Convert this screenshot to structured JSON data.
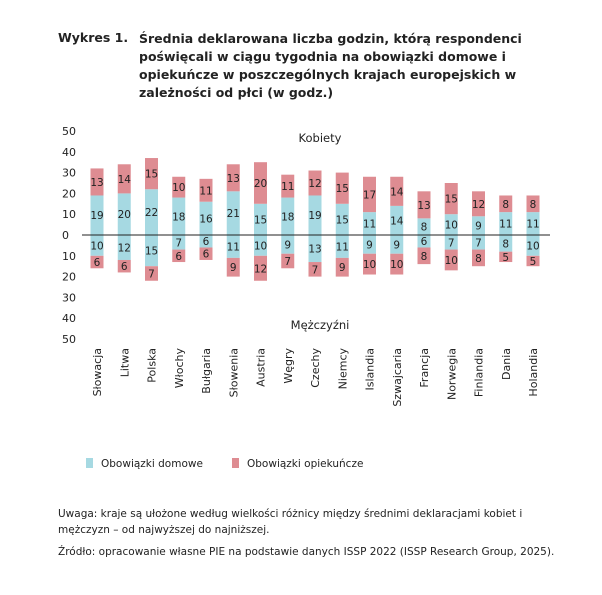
{
  "header": {
    "label": "Wykres 1.",
    "title": "Średnia deklarowana liczba godzin, którą respondenci poświęcali w ciągu tygodnia na obowiązki domowe i opiekuńcze w poszczególnych krajach europejskich w zależności od płci (w godz.)"
  },
  "chart_data": {
    "type": "bar",
    "stacked": true,
    "diverging": true,
    "top_group_label": "Kobiety",
    "bottom_group_label": "Mężczyźni",
    "ylim": [
      -50,
      50
    ],
    "yticks": [
      "50",
      "40",
      "30",
      "20",
      "10",
      "0",
      "10",
      "20",
      "30",
      "40",
      "50"
    ],
    "categories": [
      "Słowacja",
      "Litwa",
      "Polska",
      "Włochy",
      "Bułgaria",
      "Słowenia",
      "Austria",
      "Węgry",
      "Czechy",
      "Niemcy",
      "Islandia",
      "Szwajcaria",
      "Francja",
      "Norwegia",
      "Finlandia",
      "Dania",
      "Holandia"
    ],
    "series": [
      {
        "name": "Obowiązki domowe",
        "color": "#a6d9e2",
        "women": [
          19,
          20,
          22,
          18,
          16,
          21,
          15,
          18,
          19,
          15,
          11,
          14,
          8,
          10,
          9,
          11,
          11
        ],
        "men": [
          10,
          12,
          15,
          7,
          6,
          11,
          10,
          9,
          13,
          11,
          9,
          9,
          6,
          7,
          7,
          8,
          10
        ]
      },
      {
        "name": "Obowiązki opiekuńcze",
        "color": "#de8c92",
        "women": [
          13,
          14,
          15,
          10,
          11,
          13,
          20,
          11,
          12,
          15,
          17,
          14,
          13,
          15,
          12,
          8,
          8
        ],
        "men": [
          6,
          6,
          7,
          6,
          6,
          9,
          12,
          7,
          7,
          9,
          10,
          10,
          8,
          10,
          8,
          5,
          5
        ]
      }
    ],
    "legend_position": "bottom-left",
    "grid": false
  },
  "notes": {
    "uwaga": "Uwaga: kraje są ułożone według wielkości różnicy między średnimi deklaracjami kobiet i mężczyzn – od najwyższej do najniższej.",
    "zrodlo": "Źródło: opracowanie własne PIE na podstawie danych ISSP 2022 (ISSP Research Group, 2025)."
  }
}
